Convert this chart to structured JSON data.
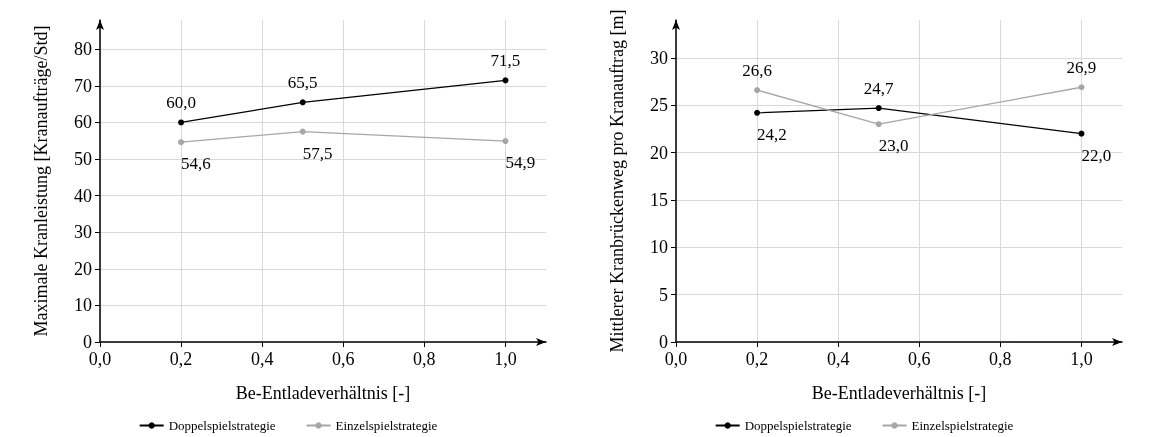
{
  "chart_data": [
    {
      "type": "line",
      "xlabel": "Be-Entladeverhältnis [-]",
      "ylabel": "Maximale Kranleistung [Kranaufträge/Std]",
      "x": [
        0.2,
        0.5,
        1.0
      ],
      "series": [
        {
          "name": "Doppelspielstrategie",
          "color": "#000000",
          "values": [
            60.0,
            65.5,
            71.5
          ],
          "value_labels": [
            "60,0",
            "65,5",
            "71,5"
          ]
        },
        {
          "name": "Einzelspielstrategie",
          "color": "#a6a6a6",
          "values": [
            54.6,
            57.5,
            54.9
          ],
          "value_labels": [
            "54,6",
            "57,5",
            "54,9"
          ]
        }
      ],
      "xlim": [
        0,
        1.1
      ],
      "xticks": [
        {
          "value": 0,
          "label": "0,0"
        },
        {
          "value": 0.2,
          "label": "0,2"
        },
        {
          "value": 0.4,
          "label": "0,4"
        },
        {
          "value": 0.6,
          "label": "0,6"
        },
        {
          "value": 0.8,
          "label": "0,8"
        },
        {
          "value": 1.0,
          "label": "1,0"
        }
      ],
      "ylim": [
        0,
        88
      ],
      "yticks": [
        0,
        10,
        20,
        30,
        40,
        50,
        60,
        70,
        80
      ],
      "grid": true,
      "legend": "bottom",
      "marker": "circle",
      "line_style": "solid"
    },
    {
      "type": "line",
      "xlabel": "Be-Entladeverhältnis [-]",
      "ylabel": "Mittlerer Kranbrückenweg pro Kranauftrag [m]",
      "x": [
        0.2,
        0.5,
        1.0
      ],
      "series": [
        {
          "name": "Doppelspielstrategie",
          "color": "#000000",
          "values": [
            24.2,
            24.7,
            22.0
          ],
          "value_labels": [
            "24,2",
            "24,7",
            "22,0"
          ]
        },
        {
          "name": "Einzelspielstrategie",
          "color": "#a6a6a6",
          "values": [
            26.6,
            23.0,
            26.9
          ],
          "value_labels": [
            "26,6",
            "23,0",
            "26,9"
          ]
        }
      ],
      "xlim": [
        0,
        1.1
      ],
      "xticks": [
        {
          "value": 0,
          "label": "0,0"
        },
        {
          "value": 0.2,
          "label": "0,2"
        },
        {
          "value": 0.4,
          "label": "0,4"
        },
        {
          "value": 0.6,
          "label": "0,6"
        },
        {
          "value": 0.8,
          "label": "0,8"
        },
        {
          "value": 1.0,
          "label": "1,0"
        }
      ],
      "ylim": [
        0,
        34
      ],
      "yticks": [
        0,
        5,
        10,
        15,
        20,
        25,
        30
      ],
      "grid": true,
      "legend": "bottom",
      "marker": "circle",
      "line_style": "solid"
    }
  ]
}
